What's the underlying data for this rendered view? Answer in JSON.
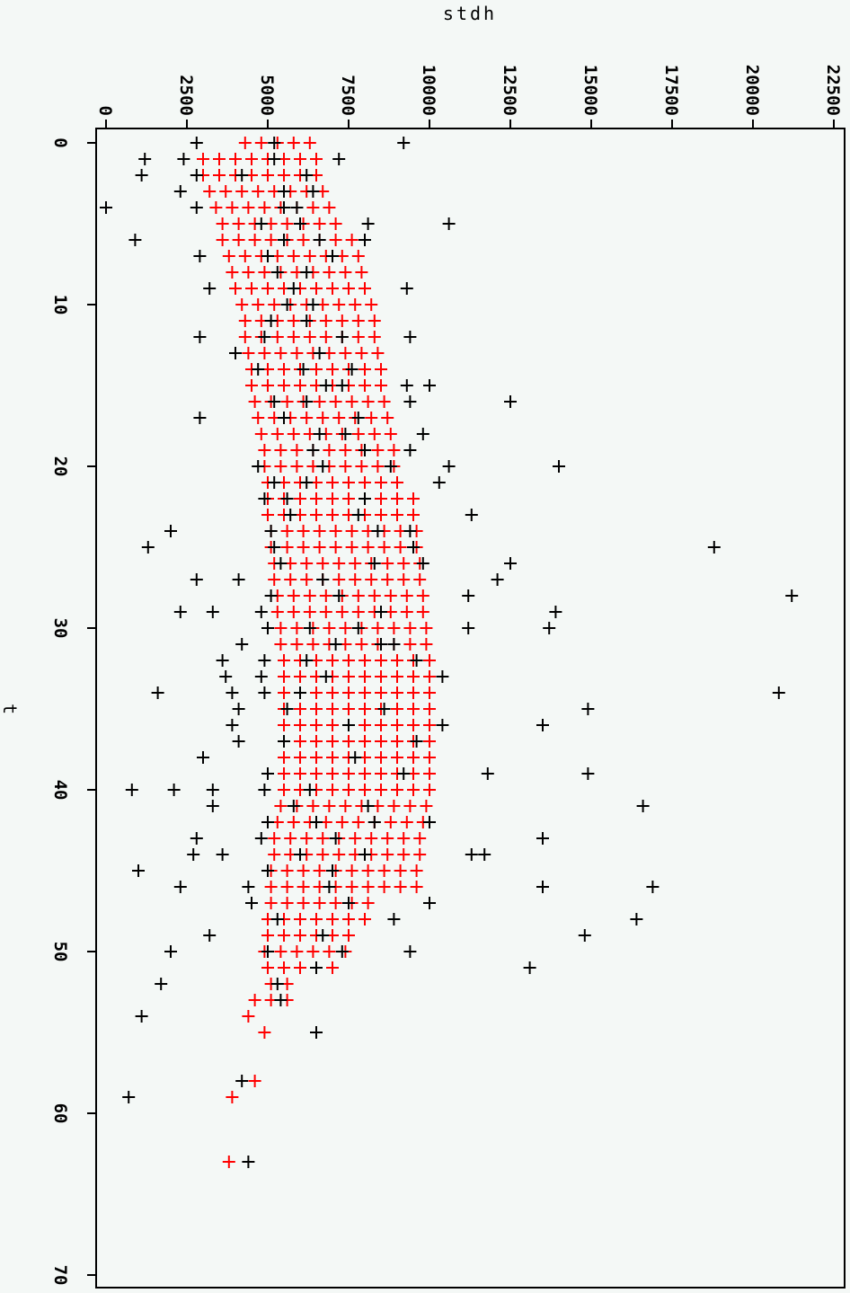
{
  "chart_data": {
    "type": "scatter",
    "title": "",
    "xlabel": "t",
    "ylabel": "stdh",
    "xlim": [
      0,
      70
    ],
    "ylim": [
      0,
      22500
    ],
    "x_ticks": [
      "0",
      "10",
      "20",
      "30",
      "40",
      "50",
      "60",
      "70"
    ],
    "y_ticks": [
      "0",
      "2500",
      "5000",
      "7500",
      "10000",
      "12500",
      "15000",
      "17500",
      "20000",
      "22500"
    ],
    "orientation": "rotated-90",
    "grid": false,
    "legend": "none",
    "series": [
      {
        "color": "#000000",
        "marker": "plus",
        "points": [
          [
            0,
            2800
          ],
          [
            0,
            5200
          ],
          [
            0,
            9200
          ],
          [
            1,
            1200
          ],
          [
            1,
            2400
          ],
          [
            1,
            5200
          ],
          [
            1,
            7200
          ],
          [
            2,
            1100
          ],
          [
            2,
            2800
          ],
          [
            2,
            4200
          ],
          [
            2,
            6200
          ],
          [
            3,
            2300
          ],
          [
            3,
            5500
          ],
          [
            3,
            6400
          ],
          [
            4,
            0
          ],
          [
            4,
            2800
          ],
          [
            4,
            5500
          ],
          [
            4,
            5900
          ],
          [
            5,
            4800
          ],
          [
            5,
            6000
          ],
          [
            5,
            8100
          ],
          [
            5,
            10600
          ],
          [
            6,
            900
          ],
          [
            6,
            5500
          ],
          [
            6,
            6600
          ],
          [
            6,
            8000
          ],
          [
            7,
            2900
          ],
          [
            7,
            5000
          ],
          [
            7,
            7000
          ],
          [
            8,
            5300
          ],
          [
            8,
            6200
          ],
          [
            9,
            3200
          ],
          [
            9,
            5800
          ],
          [
            9,
            9300
          ],
          [
            10,
            5600
          ],
          [
            10,
            6400
          ],
          [
            11,
            5100
          ],
          [
            11,
            6200
          ],
          [
            12,
            2900
          ],
          [
            12,
            4900
          ],
          [
            12,
            7300
          ],
          [
            12,
            9400
          ],
          [
            13,
            4000
          ],
          [
            13,
            6600
          ],
          [
            14,
            4700
          ],
          [
            14,
            6100
          ],
          [
            14,
            7600
          ],
          [
            15,
            6800
          ],
          [
            15,
            7300
          ],
          [
            15,
            9300
          ],
          [
            15,
            10000
          ],
          [
            16,
            5200
          ],
          [
            16,
            6200
          ],
          [
            16,
            9400
          ],
          [
            16,
            12500
          ],
          [
            17,
            2900
          ],
          [
            17,
            5500
          ],
          [
            17,
            7800
          ],
          [
            18,
            6600
          ],
          [
            18,
            7400
          ],
          [
            18,
            9800
          ],
          [
            19,
            6400
          ],
          [
            19,
            8000
          ],
          [
            19,
            9400
          ],
          [
            20,
            4700
          ],
          [
            20,
            6700
          ],
          [
            20,
            8800
          ],
          [
            20,
            10600
          ],
          [
            20,
            14000
          ],
          [
            21,
            5200
          ],
          [
            21,
            6200
          ],
          [
            21,
            10300
          ],
          [
            22,
            4900
          ],
          [
            22,
            5600
          ],
          [
            22,
            8000
          ],
          [
            23,
            5700
          ],
          [
            23,
            7800
          ],
          [
            23,
            11300
          ],
          [
            24,
            2000
          ],
          [
            24,
            5100
          ],
          [
            24,
            8400
          ],
          [
            24,
            9400
          ],
          [
            25,
            1300
          ],
          [
            25,
            5200
          ],
          [
            25,
            9500
          ],
          [
            25,
            18800
          ],
          [
            26,
            5400
          ],
          [
            26,
            8300
          ],
          [
            26,
            9800
          ],
          [
            26,
            12500
          ],
          [
            27,
            2800
          ],
          [
            27,
            4100
          ],
          [
            27,
            6700
          ],
          [
            27,
            12100
          ],
          [
            28,
            5100
          ],
          [
            28,
            7200
          ],
          [
            28,
            11200
          ],
          [
            28,
            21200
          ],
          [
            29,
            2300
          ],
          [
            29,
            3300
          ],
          [
            29,
            4800
          ],
          [
            29,
            8500
          ],
          [
            29,
            13900
          ],
          [
            30,
            5000
          ],
          [
            30,
            6300
          ],
          [
            30,
            7800
          ],
          [
            30,
            11200
          ],
          [
            30,
            13700
          ],
          [
            31,
            4200
          ],
          [
            31,
            7100
          ],
          [
            31,
            8500
          ],
          [
            31,
            8900
          ],
          [
            32,
            3600
          ],
          [
            32,
            4900
          ],
          [
            32,
            6200
          ],
          [
            32,
            9600
          ],
          [
            33,
            3700
          ],
          [
            33,
            4800
          ],
          [
            33,
            6800
          ],
          [
            33,
            10400
          ],
          [
            34,
            1600
          ],
          [
            34,
            3900
          ],
          [
            34,
            4900
          ],
          [
            34,
            6000
          ],
          [
            34,
            20800
          ],
          [
            35,
            4100
          ],
          [
            35,
            5600
          ],
          [
            35,
            8600
          ],
          [
            35,
            14900
          ],
          [
            36,
            3900
          ],
          [
            36,
            7500
          ],
          [
            36,
            10400
          ],
          [
            36,
            13500
          ],
          [
            37,
            4100
          ],
          [
            37,
            5500
          ],
          [
            37,
            9600
          ],
          [
            38,
            3000
          ],
          [
            38,
            7700
          ],
          [
            39,
            5000
          ],
          [
            39,
            9200
          ],
          [
            39,
            11800
          ],
          [
            39,
            14900
          ],
          [
            40,
            800
          ],
          [
            40,
            2100
          ],
          [
            40,
            3300
          ],
          [
            40,
            4900
          ],
          [
            40,
            6300
          ],
          [
            41,
            3300
          ],
          [
            41,
            5800
          ],
          [
            41,
            8100
          ],
          [
            41,
            16600
          ],
          [
            42,
            5000
          ],
          [
            42,
            6500
          ],
          [
            42,
            8300
          ],
          [
            42,
            10000
          ],
          [
            43,
            2800
          ],
          [
            43,
            4800
          ],
          [
            43,
            7100
          ],
          [
            43,
            13500
          ],
          [
            44,
            2700
          ],
          [
            44,
            3600
          ],
          [
            44,
            6000
          ],
          [
            44,
            8000
          ],
          [
            44,
            11300
          ],
          [
            44,
            11700
          ],
          [
            45,
            1000
          ],
          [
            45,
            5000
          ],
          [
            45,
            7000
          ],
          [
            46,
            2300
          ],
          [
            46,
            4400
          ],
          [
            46,
            6900
          ],
          [
            46,
            13500
          ],
          [
            46,
            16900
          ],
          [
            47,
            4500
          ],
          [
            47,
            7500
          ],
          [
            47,
            10000
          ],
          [
            48,
            5300
          ],
          [
            48,
            8900
          ],
          [
            48,
            16400
          ],
          [
            49,
            3200
          ],
          [
            49,
            6700
          ],
          [
            49,
            14800
          ],
          [
            50,
            2000
          ],
          [
            50,
            5000
          ],
          [
            50,
            7300
          ],
          [
            50,
            9400
          ],
          [
            51,
            6500
          ],
          [
            51,
            13100
          ],
          [
            52,
            1700
          ],
          [
            52,
            5300
          ],
          [
            53,
            5400
          ],
          [
            54,
            1100
          ],
          [
            55,
            6500
          ],
          [
            58,
            4200
          ],
          [
            59,
            700
          ],
          [
            63,
            4400
          ]
        ]
      },
      {
        "color": "#ff0000",
        "marker": "plus",
        "band_points": [
          [
            0,
            4300,
            6400
          ],
          [
            1,
            3000,
            6800
          ],
          [
            2,
            3000,
            6900
          ],
          [
            3,
            3200,
            7100
          ],
          [
            4,
            3400,
            7300
          ],
          [
            5,
            3600,
            7500
          ],
          [
            6,
            3600,
            7600
          ],
          [
            7,
            3800,
            7800
          ],
          [
            8,
            3900,
            8000
          ],
          [
            9,
            4000,
            8100
          ],
          [
            10,
            4200,
            8300
          ],
          [
            11,
            4300,
            8400
          ],
          [
            12,
            4300,
            8500
          ],
          [
            13,
            4400,
            8600
          ],
          [
            14,
            4500,
            8700
          ],
          [
            15,
            4500,
            8800
          ],
          [
            16,
            4600,
            8900
          ],
          [
            17,
            4700,
            9000
          ],
          [
            18,
            4800,
            9100
          ],
          [
            19,
            4900,
            9200
          ],
          [
            20,
            4900,
            9300
          ],
          [
            21,
            5000,
            9400
          ],
          [
            22,
            5000,
            9500
          ],
          [
            23,
            5000,
            9600
          ],
          [
            24,
            5100,
            9600
          ],
          [
            25,
            5100,
            9700
          ],
          [
            26,
            5200,
            9700
          ],
          [
            27,
            5200,
            9800
          ],
          [
            28,
            5300,
            9900
          ],
          [
            29,
            5300,
            9900
          ],
          [
            30,
            5400,
            10000
          ],
          [
            31,
            5400,
            10000
          ],
          [
            32,
            5500,
            10000
          ],
          [
            33,
            5500,
            10000
          ],
          [
            34,
            5500,
            10000
          ],
          [
            35,
            5500,
            10000
          ],
          [
            36,
            5500,
            10000
          ],
          [
            37,
            5500,
            10000
          ],
          [
            38,
            5500,
            10000
          ],
          [
            39,
            5500,
            10000
          ],
          [
            40,
            5500,
            10000
          ],
          [
            41,
            5400,
            10000
          ],
          [
            42,
            5300,
            10000
          ],
          [
            43,
            5200,
            9800
          ],
          [
            44,
            5200,
            9700
          ],
          [
            45,
            5100,
            9600
          ],
          [
            46,
            5100,
            9600
          ],
          [
            47,
            5100,
            8500
          ],
          [
            48,
            5000,
            8300
          ],
          [
            49,
            5000,
            7800
          ],
          [
            50,
            4900,
            7600
          ],
          [
            51,
            5000,
            7000
          ],
          [
            52,
            5100,
            6000
          ],
          [
            53,
            4600,
            5700
          ],
          [
            54,
            4400,
            4400
          ],
          [
            55,
            4900,
            4900
          ],
          [
            58,
            4600,
            4600
          ],
          [
            59,
            3900,
            3900
          ],
          [
            63,
            3800,
            3800
          ]
        ]
      }
    ]
  }
}
